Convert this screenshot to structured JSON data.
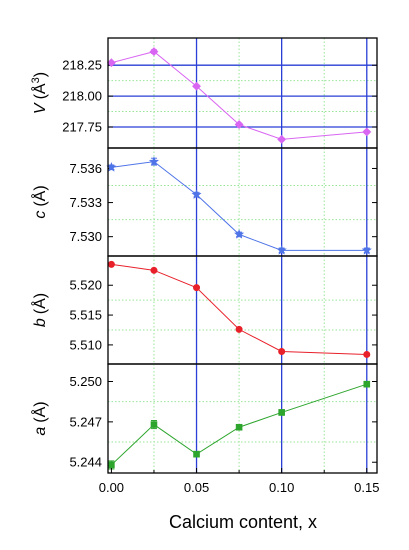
{
  "chart_data": {
    "type": "line",
    "shared_x": {
      "label": "Calcium content, x",
      "range": [
        -0.002,
        0.156
      ],
      "ticks": [
        0.0,
        0.05,
        0.1,
        0.15
      ],
      "tick_labels": [
        "0.00",
        "0.05",
        "0.10",
        "0.15"
      ]
    },
    "panels": [
      {
        "id": "V",
        "ylabel_var": "V",
        "ylabel_unit": "(Å",
        "ylabel_sup": "3",
        "ylabel_close": ")",
        "ylim": [
          217.58,
          218.47
        ],
        "yticks": [
          217.75,
          218.0,
          218.25
        ],
        "ytick_labels": [
          "217.75",
          "218.00",
          "218.25"
        ],
        "color": "#d966f2",
        "marker": "diamond",
        "x": [
          0.0,
          0.025,
          0.05,
          0.075,
          0.1,
          0.15
        ],
        "y": [
          218.27,
          218.36,
          218.08,
          217.77,
          217.65,
          217.71
        ],
        "err": [
          0.01,
          0.015,
          0.01,
          0.01,
          0.01,
          0.01
        ]
      },
      {
        "id": "c",
        "ylabel_var": "c",
        "ylabel_unit": "(Å)",
        "ylim": [
          7.5283,
          7.5378
        ],
        "yticks": [
          7.53,
          7.533,
          7.536
        ],
        "ytick_labels": [
          "7.530",
          "7.533",
          "7.536"
        ],
        "color": "#4f74e8",
        "marker": "star",
        "x": [
          0.0,
          0.025,
          0.05,
          0.075,
          0.1,
          0.15
        ],
        "y": [
          7.5361,
          7.5366,
          7.5337,
          7.5302,
          7.5288,
          7.5288
        ],
        "err": [
          0.0002,
          0.0003,
          0.0002,
          0.0002,
          0.0002,
          0.0002
        ]
      },
      {
        "id": "b",
        "ylabel_var": "b",
        "ylabel_unit": "(Å)",
        "ylim": [
          5.5068,
          5.5249
        ],
        "yticks": [
          5.51,
          5.515,
          5.52
        ],
        "ytick_labels": [
          "5.510",
          "5.515",
          "5.520"
        ],
        "color": "#e8202a",
        "marker": "circle",
        "x": [
          0.0,
          0.025,
          0.05,
          0.075,
          0.1,
          0.15
        ],
        "y": [
          5.5235,
          5.5225,
          5.5196,
          5.5126,
          5.5089,
          5.5084
        ],
        "err": [
          0.0001,
          0.0001,
          0.0001,
          0.0001,
          0.0001,
          0.0001
        ]
      },
      {
        "id": "a",
        "ylabel_var": "a",
        "ylabel_unit": "(Å)",
        "ylim": [
          5.2432,
          5.2513
        ],
        "yticks": [
          5.244,
          5.247,
          5.25
        ],
        "ytick_labels": [
          "5.244",
          "5.247",
          "5.250"
        ],
        "color": "#2da52d",
        "marker": "square",
        "x": [
          0.0,
          0.025,
          0.05,
          0.075,
          0.1,
          0.15
        ],
        "y": [
          5.2438,
          5.2468,
          5.2446,
          5.2466,
          5.2477,
          5.2498
        ],
        "err": [
          0.0003,
          0.0003,
          0.0002,
          0.0002,
          0.0002,
          0.0002
        ]
      }
    ],
    "grid": {
      "major_vertical_color": "#2a3fd6",
      "minor_vertical_color": "#99e699",
      "horizontal_color": "#2a3fd6"
    },
    "legend": "none"
  }
}
